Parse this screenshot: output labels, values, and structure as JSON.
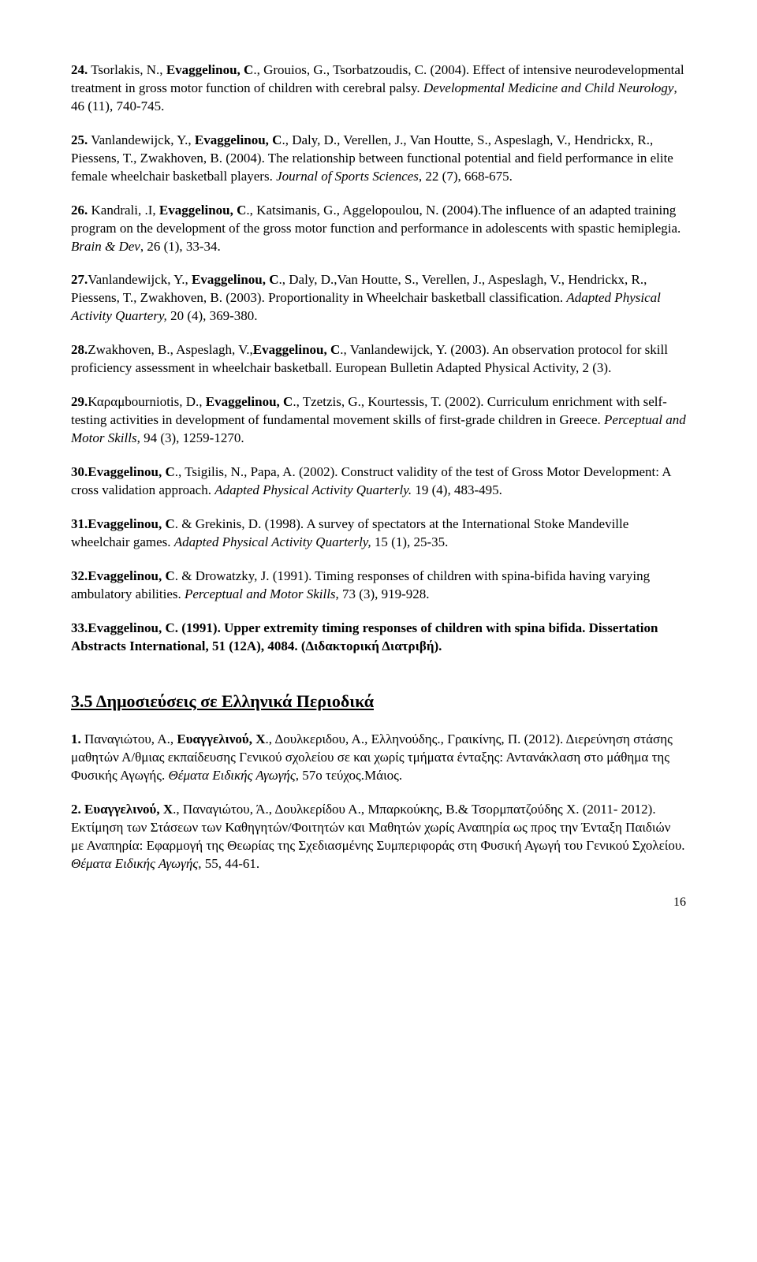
{
  "refs": [
    {
      "pre": "24. Tsorlakis, N., ",
      "bold": "Evaggelinou, C",
      "post1": "., Grouios, G., Tsorbatzoudis, C. (2004). Effect of intensive neurodevelopmental treatment in gross motor function of children with cerebral palsy. ",
      "ital": "Developmental Medicine and Child Neurology",
      "post2": ", 46 (11), 740-745."
    },
    {
      "pre": "25. Vanlandewijck, Y., ",
      "bold": "Evaggelinou, C",
      "post1": "., Daly, D., Verellen, J., Van Houtte, S., Aspeslagh, V., Hendrickx, R., Piessens, T., Zwakhoven, B. (2004). The relationship between functional potential and field performance in elite female wheelchair basketball players. ",
      "ital": "Journal of Sports Sciences",
      "post2": ", 22 (7), 668-675."
    },
    {
      "pre": "26. Kandrali, .I, ",
      "bold": "Evaggelinou, C",
      "post1": "., Katsimanis, G., Aggelopoulou, N. (2004).The influence of an adapted training program on the development of the gross motor function and performance in adolescents with spastic hemiplegia. ",
      "ital": "Brain & Dev",
      "post2": ", 26 (1), 33-34."
    },
    {
      "pre": "27.Vanlandewijck, Y., ",
      "bold": "Evaggelinou, C",
      "post1": "., Daly, D.,Van Houtte, S., Verellen, J., Aspeslagh, V., Hendrickx, R., Piessens, T., Zwakhoven, B. (2003). Proportionality in Wheelchair basketball classification. ",
      "ital": "Adapted Physical Activity Quartery, ",
      "post2": "20 (4), 369-380."
    },
    {
      "pre": "28.Zwakhoven, B., Aspeslagh, V.,",
      "bold": "Evaggelinou, C",
      "post1": "., Vanlandewijck, Y. (2003). An observation protocol for skill proficiency assessment in wheelchair basketball. ",
      "ital": "",
      "post2": "European Bulletin Adapted Physical Activity, 2 (3)."
    },
    {
      "pre": "29.Καραμbourniotis, D., ",
      "bold": "Evaggelinou, C",
      "post1": "., Tzetzis, G., Kourtessis, T. (2002). Curriculum enrichment with self-testing activities in development of fundamental movement skills of first-grade children in Greece. ",
      "ital": "Perceptual and Motor Skills",
      "post2": ", 94 (3), 1259-1270."
    },
    {
      "pre": "30.",
      "bold": "Evaggelinou, C",
      "post1": "., Tsigilis, N., Papa, A. (2002). Construct validity of the test of Gross Motor Development: A cross validation approach. ",
      "ital": "Adapted Physical Activity Quarterly. ",
      "post2": "19 (4), 483-495."
    },
    {
      "pre": "31.",
      "bold": "Evaggelinou, C",
      "post1": ". & Grekinis, D. (1998). A survey of spectators at the International Stoke Mandeville wheelchair games. ",
      "ital": "Adapted Physical Activity Quarterly, ",
      "post2": "15 (1), 25-35."
    },
    {
      "pre": "32.",
      "bold": "Evaggelinou, C",
      "post1": ". & Drowatzky, J. (1991). Timing responses of children with spina-bifida having varying ambulatory abilities. ",
      "ital": "Perceptual and Motor Skills",
      "post2": ", 73 (3), 919-928."
    }
  ],
  "ref33": {
    "pre": "33.",
    "bold1": "Evaggelinou, C. (1991). Upper extremity timing responses of children with spina bifida. Dissertation Abstracts International, 51 (12A), 4084. (Διδακτορική Διατριβή)."
  },
  "heading": "3.5 Δημοσιεύσεις σε Ελληνικά Περιοδικά",
  "greek1": {
    "pre": "1. Παναγιώτου, Α., ",
    "bold": "Ευαγγελινού, Χ",
    "post1": "., Δουλκεριδου, Α., Ελληνούδης., Γραικίνης, Π. (2012). Διερεύνηση στάσης μαθητών Α/θμιας εκπαίδευσης Γενικού σχολείου σε και χωρίς τμήματα ένταξης: Αντανάκλαση στο μάθημα της Φυσικής Αγωγής. ",
    "ital": "Θέματα Ειδικής Αγωγής",
    "post2": ", 57ο τεύχος.Μάιος."
  },
  "greek2": {
    "pre": "2. ",
    "bold": "Ευαγγελινού, Χ",
    "post1": "., Παναγιώτου, Ά., Δουλκερίδου Α., Μπαρκούκης, Β.& Τσορμπατζούδης Χ. (2011- 2012). Εκτίμηση των Στάσεων των Καθηγητών/Φοιτητών και Μαθητών χωρίς Αναπηρία ως προς την Ένταξη Παιδιών με Αναπηρία: Εφαρμογή της Θεωρίας της Σχεδιασμένης Συμπεριφοράς στη Φυσική Αγωγή του Γενικού Σχολείου. ",
    "ital": "Θέματα Ειδικής Αγωγής",
    "post2": ", 55, 44-61."
  },
  "pageNumber": "16"
}
